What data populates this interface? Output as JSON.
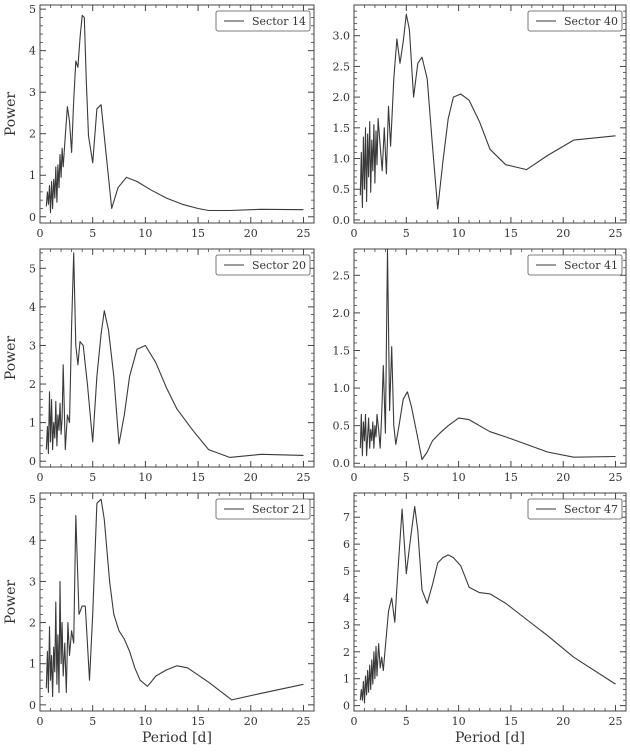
{
  "chart_data": [
    {
      "type": "line",
      "legend": "Sector 14",
      "legend_position": "top-right",
      "ylabel": "Power",
      "xlabel": "",
      "xlim": [
        0,
        26
      ],
      "ylim": [
        -0.15,
        5.1
      ],
      "xticks": [
        0,
        5,
        10,
        15,
        20,
        25
      ],
      "yticks": [
        0,
        1,
        2,
        3,
        4,
        5
      ],
      "xtick_labels": [
        "0",
        "5",
        "10",
        "15",
        "20",
        "25"
      ],
      "ytick_labels": [
        "0",
        "1",
        "2",
        "3",
        "4",
        "5"
      ],
      "x": [
        0.6,
        0.7,
        0.8,
        0.9,
        1.0,
        1.1,
        1.2,
        1.3,
        1.4,
        1.5,
        1.6,
        1.7,
        1.8,
        1.9,
        2.0,
        2.1,
        2.2,
        2.4,
        2.6,
        2.8,
        3.0,
        3.2,
        3.4,
        3.6,
        3.8,
        4.0,
        4.2,
        4.4,
        4.6,
        5.0,
        5.4,
        5.8,
        6.2,
        6.8,
        7.4,
        8.2,
        9.2,
        10.5,
        12,
        13.5,
        15,
        16,
        18,
        21,
        25
      ],
      "y": [
        0.25,
        0.6,
        0.3,
        0.75,
        0.1,
        0.85,
        0.2,
        0.9,
        0.45,
        1.2,
        0.35,
        1.25,
        0.7,
        1.5,
        0.95,
        1.65,
        1.2,
        1.95,
        2.65,
        2.3,
        1.55,
        2.8,
        3.75,
        3.6,
        4.3,
        4.85,
        4.8,
        3.2,
        1.95,
        1.3,
        2.6,
        2.7,
        1.7,
        0.2,
        0.7,
        0.95,
        0.85,
        0.65,
        0.45,
        0.3,
        0.2,
        0.15,
        0.15,
        0.18,
        0.17
      ]
    },
    {
      "type": "line",
      "legend": "Sector 40",
      "legend_position": "top-right",
      "ylabel": "",
      "xlabel": "",
      "xlim": [
        0,
        26
      ],
      "ylim": [
        -0.05,
        3.5
      ],
      "xticks": [
        0,
        5,
        10,
        15,
        20,
        25
      ],
      "yticks": [
        0,
        0.5,
        1,
        1.5,
        2,
        2.5,
        3
      ],
      "xtick_labels": [
        "0",
        "5",
        "10",
        "15",
        "20",
        "25"
      ],
      "ytick_labels": [
        "0.0",
        "0.5",
        "1.0",
        "1.5",
        "2.0",
        "2.5",
        "3.0"
      ],
      "x": [
        0.6,
        0.7,
        0.8,
        0.9,
        1.0,
        1.1,
        1.2,
        1.3,
        1.4,
        1.5,
        1.6,
        1.7,
        1.8,
        1.9,
        2.0,
        2.1,
        2.2,
        2.3,
        2.5,
        2.7,
        2.9,
        3.1,
        3.3,
        3.5,
        3.8,
        4.1,
        4.4,
        4.7,
        5.0,
        5.3,
        5.7,
        6.1,
        6.5,
        7.0,
        7.5,
        8.0,
        8.5,
        9.0,
        9.5,
        10.2,
        11,
        12,
        13,
        14.5,
        16.5,
        18.5,
        21,
        25
      ],
      "y": [
        0.4,
        1.1,
        0.2,
        1.35,
        0.5,
        1.5,
        0.3,
        1.4,
        0.7,
        1.6,
        0.45,
        1.3,
        0.8,
        1.55,
        0.6,
        1.45,
        0.9,
        1.65,
        1.2,
        0.8,
        1.5,
        0.75,
        1.85,
        1.2,
        2.3,
        2.95,
        2.55,
        2.9,
        3.35,
        3.1,
        2.0,
        2.55,
        2.65,
        2.3,
        1.2,
        0.18,
        0.95,
        1.65,
        2.0,
        2.05,
        1.95,
        1.6,
        1.15,
        0.9,
        0.82,
        1.05,
        1.3,
        1.37
      ]
    },
    {
      "type": "line",
      "legend": "Sector 20",
      "legend_position": "top-right",
      "ylabel": "Power",
      "xlabel": "",
      "xlim": [
        0,
        26
      ],
      "ylim": [
        -0.15,
        5.5
      ],
      "xticks": [
        0,
        5,
        10,
        15,
        20,
        25
      ],
      "yticks": [
        0,
        1,
        2,
        3,
        4,
        5
      ],
      "xtick_labels": [
        "0",
        "5",
        "10",
        "15",
        "20",
        "25"
      ],
      "ytick_labels": [
        "0",
        "1",
        "2",
        "3",
        "4",
        "5"
      ],
      "x": [
        0.6,
        0.7,
        0.8,
        0.9,
        1.0,
        1.1,
        1.2,
        1.3,
        1.4,
        1.5,
        1.6,
        1.7,
        1.8,
        1.9,
        2.0,
        2.1,
        2.2,
        2.4,
        2.6,
        2.8,
        3.0,
        3.2,
        3.4,
        3.6,
        3.8,
        4.1,
        4.5,
        5.0,
        5.4,
        5.8,
        6.1,
        6.5,
        7.0,
        7.5,
        8.0,
        8.5,
        9.2,
        10,
        11,
        12,
        13,
        14.5,
        16,
        18,
        21,
        25
      ],
      "y": [
        0.3,
        0.9,
        0.2,
        1.8,
        0.5,
        1.6,
        0.3,
        1.0,
        0.6,
        1.55,
        0.4,
        1.2,
        0.8,
        1.5,
        0.7,
        1.1,
        2.5,
        0.3,
        1.2,
        1.0,
        3.5,
        5.4,
        3.0,
        2.5,
        3.1,
        3.0,
        2.0,
        0.5,
        2.2,
        3.3,
        3.9,
        3.4,
        2.2,
        0.45,
        1.2,
        2.2,
        2.9,
        3.0,
        2.55,
        1.9,
        1.35,
        0.8,
        0.3,
        0.1,
        0.18,
        0.15
      ]
    },
    {
      "type": "line",
      "legend": "Sector 41",
      "legend_position": "top-right",
      "ylabel": "",
      "xlabel": "",
      "xlim": [
        0,
        26
      ],
      "ylim": [
        -0.05,
        2.85
      ],
      "xticks": [
        0,
        5,
        10,
        15,
        20,
        25
      ],
      "yticks": [
        0,
        0.5,
        1,
        1.5,
        2,
        2.5
      ],
      "xtick_labels": [
        "0",
        "5",
        "10",
        "15",
        "20",
        "25"
      ],
      "ytick_labels": [
        "0.0",
        "0.5",
        "1.0",
        "1.5",
        "2.0",
        "2.5"
      ],
      "x": [
        0.6,
        0.7,
        0.8,
        0.9,
        1.0,
        1.1,
        1.2,
        1.3,
        1.4,
        1.5,
        1.6,
        1.7,
        1.8,
        1.9,
        2.0,
        2.1,
        2.2,
        2.35,
        2.5,
        2.65,
        2.8,
        3.0,
        3.2,
        3.4,
        3.6,
        3.8,
        4.0,
        4.3,
        4.7,
        5.1,
        5.5,
        6.0,
        6.5,
        7.0,
        7.5,
        8.2,
        9.0,
        10,
        11,
        12,
        13,
        14.5,
        16.5,
        18.5,
        21,
        25
      ],
      "y": [
        0.2,
        0.65,
        0.1,
        0.55,
        0.3,
        0.65,
        0.1,
        0.35,
        0.6,
        0.2,
        0.45,
        0.3,
        0.55,
        0.2,
        0.5,
        0.35,
        0.65,
        0.45,
        0.2,
        0.65,
        1.3,
        0.4,
        2.85,
        0.7,
        1.55,
        0.5,
        0.25,
        0.5,
        0.85,
        0.95,
        0.75,
        0.4,
        0.05,
        0.15,
        0.3,
        0.4,
        0.5,
        0.6,
        0.58,
        0.5,
        0.42,
        0.35,
        0.25,
        0.15,
        0.08,
        0.09
      ]
    },
    {
      "type": "line",
      "legend": "Sector 21",
      "legend_position": "top-right",
      "ylabel": "Power",
      "xlabel": "Period [d]",
      "xlim": [
        0,
        26
      ],
      "ylim": [
        -0.15,
        5.15
      ],
      "xticks": [
        0,
        5,
        10,
        15,
        20,
        25
      ],
      "yticks": [
        0,
        1,
        2,
        3,
        4,
        5
      ],
      "xtick_labels": [
        "0",
        "5",
        "10",
        "15",
        "20",
        "25"
      ],
      "ytick_labels": [
        "0",
        "1",
        "2",
        "3",
        "4",
        "5"
      ],
      "x": [
        0.6,
        0.7,
        0.8,
        0.9,
        1.0,
        1.1,
        1.2,
        1.3,
        1.4,
        1.5,
        1.6,
        1.7,
        1.8,
        1.9,
        2.0,
        2.1,
        2.2,
        2.35,
        2.5,
        2.65,
        2.8,
        3.0,
        3.2,
        3.4,
        3.7,
        4.0,
        4.3,
        4.7,
        5.0,
        5.4,
        5.8,
        6.1,
        6.6,
        7.0,
        7.5,
        8.0,
        8.5,
        9.0,
        9.5,
        10.2,
        11,
        12,
        13,
        14,
        16,
        18.2,
        21,
        25
      ],
      "y": [
        0.4,
        1.3,
        0.3,
        1.9,
        0.6,
        1.2,
        0.2,
        1.4,
        0.8,
        2.5,
        0.5,
        1.7,
        0.3,
        3.0,
        1.0,
        2.0,
        0.7,
        1.5,
        0.3,
        2.0,
        1.2,
        1.8,
        1.5,
        4.6,
        2.2,
        2.4,
        2.4,
        0.6,
        2.2,
        4.9,
        5.0,
        4.5,
        3.0,
        2.2,
        1.8,
        1.6,
        1.3,
        0.9,
        0.6,
        0.45,
        0.7,
        0.85,
        0.95,
        0.9,
        0.55,
        0.12,
        0.28,
        0.5
      ]
    },
    {
      "type": "line",
      "legend": "Sector 47",
      "legend_position": "top-right",
      "ylabel": "",
      "xlabel": "Period [d]",
      "xlim": [
        0,
        26
      ],
      "ylim": [
        -0.2,
        7.9
      ],
      "xticks": [
        0,
        5,
        10,
        15,
        20,
        25
      ],
      "yticks": [
        0,
        1,
        2,
        3,
        4,
        5,
        6,
        7
      ],
      "xtick_labels": [
        "0",
        "5",
        "10",
        "15",
        "20",
        "25"
      ],
      "ytick_labels": [
        "0",
        "1",
        "2",
        "3",
        "4",
        "5",
        "6",
        "7"
      ],
      "x": [
        0.6,
        0.7,
        0.8,
        0.9,
        1.0,
        1.1,
        1.2,
        1.3,
        1.4,
        1.5,
        1.6,
        1.7,
        1.8,
        1.9,
        2.0,
        2.1,
        2.2,
        2.35,
        2.5,
        2.65,
        2.8,
        3.0,
        3.3,
        3.6,
        3.9,
        4.2,
        4.6,
        5.0,
        5.4,
        5.8,
        6.1,
        6.5,
        7.0,
        7.5,
        8.0,
        8.5,
        9.0,
        9.5,
        10.2,
        11,
        12,
        13,
        14.5,
        16.5,
        18.5,
        21,
        25
      ],
      "y": [
        0.2,
        0.6,
        0.2,
        0.9,
        0.1,
        1.1,
        0.4,
        1.3,
        0.5,
        1.5,
        0.6,
        1.7,
        0.8,
        2.0,
        1.0,
        2.2,
        1.1,
        2.3,
        1.4,
        1.8,
        1.3,
        2.2,
        3.5,
        4.0,
        3.1,
        5.0,
        7.3,
        4.9,
        6.2,
        7.4,
        6.5,
        4.3,
        3.8,
        4.5,
        5.3,
        5.5,
        5.6,
        5.5,
        5.2,
        4.4,
        4.2,
        4.15,
        3.8,
        3.2,
        2.6,
        1.8,
        0.8
      ]
    }
  ]
}
